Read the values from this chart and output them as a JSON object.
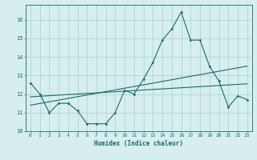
{
  "title": "",
  "xlabel": "Humidex (Indice chaleur)",
  "bg_color": "#d6eeee",
  "grid_color": "#b0d4d4",
  "line_color": "#1a6b6b",
  "xlim": [
    -0.5,
    23.5
  ],
  "ylim": [
    10,
    16.8
  ],
  "yticks": [
    10,
    11,
    12,
    13,
    14,
    15,
    16
  ],
  "xticks": [
    0,
    1,
    2,
    3,
    4,
    5,
    6,
    7,
    8,
    9,
    10,
    11,
    12,
    13,
    14,
    15,
    16,
    17,
    18,
    19,
    20,
    21,
    22,
    23
  ],
  "series1_x": [
    0,
    1,
    2,
    3,
    4,
    5,
    6,
    7,
    8,
    9,
    10,
    11,
    12,
    13,
    14,
    15,
    16,
    17,
    18,
    19,
    20,
    21,
    22,
    23
  ],
  "series1_y": [
    12.6,
    12.0,
    11.0,
    11.5,
    11.5,
    11.1,
    10.4,
    10.4,
    10.4,
    11.0,
    12.2,
    12.0,
    12.8,
    13.7,
    14.9,
    15.5,
    16.4,
    14.9,
    14.9,
    13.5,
    12.7,
    11.3,
    11.9,
    11.7
  ],
  "trend1_x": [
    0,
    23
  ],
  "trend1_y": [
    11.85,
    12.55
  ],
  "trend2_x": [
    0,
    23
  ],
  "trend2_y": [
    11.4,
    13.5
  ]
}
